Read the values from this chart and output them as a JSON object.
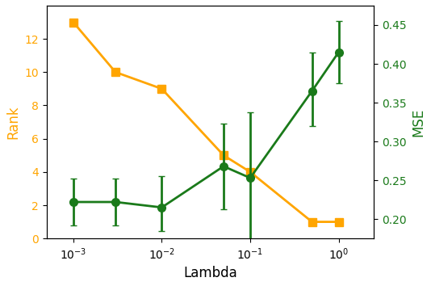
{
  "lambda_x": [
    0.001,
    0.003,
    0.01,
    0.05,
    0.1,
    0.5,
    1.0
  ],
  "rank_y": [
    13,
    10,
    9,
    5,
    4,
    1,
    1
  ],
  "mse_y": [
    0.222,
    0.222,
    0.215,
    0.268,
    0.253,
    0.365,
    0.415
  ],
  "mse_yerr_low": [
    0.03,
    0.03,
    0.03,
    0.055,
    0.085,
    0.045,
    0.04
  ],
  "mse_yerr_high": [
    0.03,
    0.03,
    0.04,
    0.055,
    0.085,
    0.05,
    0.04
  ],
  "rank_color": "#FFA500",
  "mse_color": "#1a7a1a",
  "xlabel": "Lambda",
  "ylabel_left": "Rank",
  "ylabel_right": "MSE",
  "ylim_left": [
    0,
    14
  ],
  "ylim_right": [
    0.175,
    0.475
  ],
  "yticks_left": [
    0,
    2,
    4,
    6,
    8,
    10,
    12
  ],
  "yticks_right": [
    0.2,
    0.25,
    0.3,
    0.35,
    0.4,
    0.45
  ],
  "xlim": [
    0.0005,
    2.5
  ],
  "xticks": [
    0.001,
    0.01,
    0.1,
    1.0
  ]
}
